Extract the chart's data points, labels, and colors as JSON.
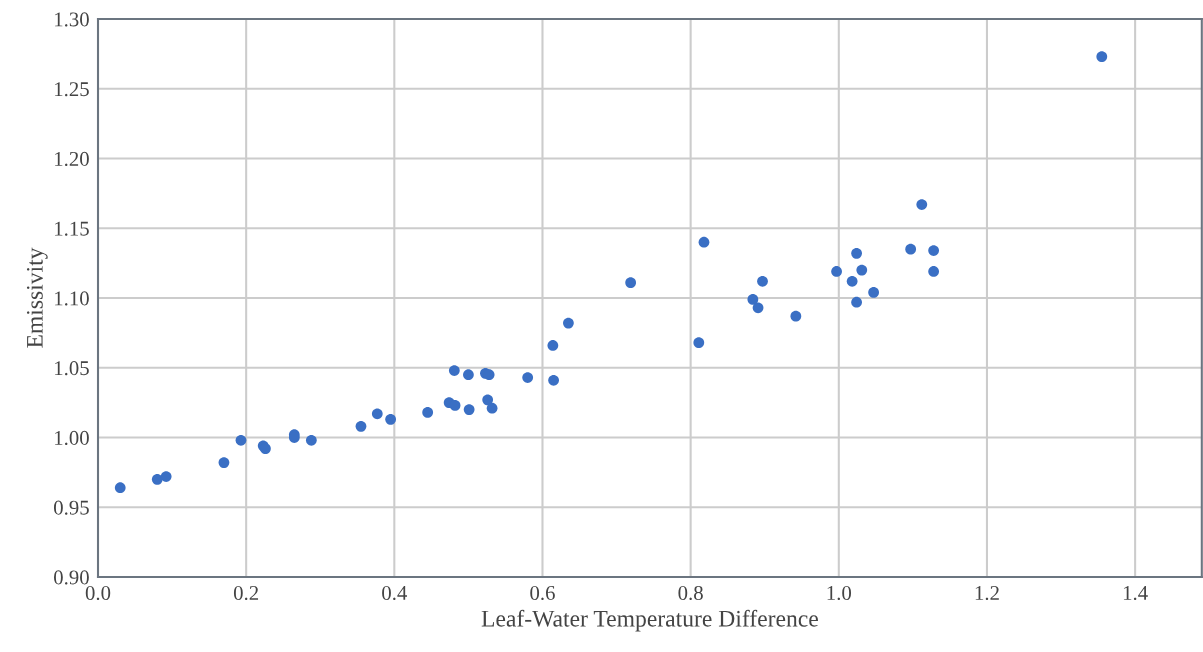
{
  "chart_data": {
    "type": "scatter",
    "xlabel": "Leaf-Water Temperature Difference",
    "ylabel": "Emissivity",
    "series": [
      {
        "color": "#3a6fc4",
        "x": [
          0.03,
          0.08,
          0.092,
          0.17,
          0.193,
          0.223,
          0.226,
          0.265,
          0.265,
          0.288,
          0.355,
          0.377,
          0.395,
          0.445,
          0.474,
          0.481,
          0.482,
          0.5,
          0.501,
          0.526,
          0.532,
          0.523,
          0.528,
          0.58,
          0.615,
          0.614,
          0.635,
          0.719,
          0.811,
          0.818,
          0.884,
          0.891,
          0.897,
          0.942,
          0.997,
          1.018,
          1.024,
          1.024,
          1.031,
          1.047,
          1.097,
          1.112,
          1.128,
          1.128,
          1.355
        ],
        "values": [
          0.964,
          0.97,
          0.972,
          0.982,
          0.998,
          0.994,
          0.992,
          1.002,
          1.0,
          0.998,
          1.008,
          1.017,
          1.013,
          1.018,
          1.025,
          1.048,
          1.023,
          1.045,
          1.02,
          1.027,
          1.021,
          1.046,
          1.045,
          1.043,
          1.041,
          1.066,
          1.082,
          1.111,
          1.068,
          1.14,
          1.099,
          1.093,
          1.112,
          1.087,
          1.119,
          1.112,
          1.132,
          1.097,
          1.12,
          1.104,
          1.135,
          1.167,
          1.134,
          1.119,
          1.273
        ]
      }
    ],
    "xlim": [
      0,
      1.49
    ],
    "ylim": [
      0.9,
      1.3
    ],
    "xticks": [
      {
        "value": 0,
        "label": "0.0"
      },
      {
        "value": 0.2,
        "label": "0.2"
      },
      {
        "value": 0.4,
        "label": "0.4"
      },
      {
        "value": 0.6,
        "label": "0.6"
      },
      {
        "value": 0.8,
        "label": "0.8"
      },
      {
        "value": 1.0,
        "label": "1.0"
      },
      {
        "value": 1.2,
        "label": "1.2"
      },
      {
        "value": 1.4,
        "label": "1.4"
      }
    ],
    "yticks": [
      {
        "value": 0.9,
        "label": "0.90"
      },
      {
        "value": 0.95,
        "label": "0.95"
      },
      {
        "value": 1.0,
        "label": "1.00"
      },
      {
        "value": 1.05,
        "label": "1.05"
      },
      {
        "value": 1.1,
        "label": "1.10"
      },
      {
        "value": 1.15,
        "label": "1.15"
      },
      {
        "value": 1.2,
        "label": "1.20"
      },
      {
        "value": 1.25,
        "label": "1.25"
      },
      {
        "value": 1.3,
        "label": "1.30"
      }
    ],
    "grid": true,
    "marker": "circle"
  }
}
